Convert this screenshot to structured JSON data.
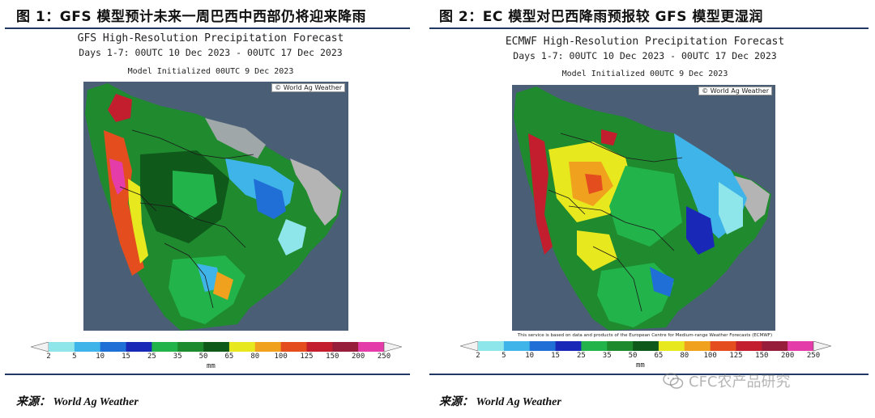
{
  "figure_left": {
    "title": "图 1：GFS 模型预计未来一周巴西中西部仍将迎来降雨",
    "panel_title": "GFS High-Resolution Precipitation Forecast",
    "days": "Days 1-7: 00UTC 10 Dec 2023 - 00UTC 17 Dec 2023",
    "initialized": "Model Initialized 00UTC 9 Dec 2023",
    "credit": "World Ag Weather",
    "source": "来源： World Ag Weather"
  },
  "figure_right": {
    "title": "图 2：EC 模型对巴西降雨预报较 GFS 模型更湿润",
    "panel_title": "ECMWF High-Resolution Precipitation Forecast",
    "days": "Days 1-7: 00UTC 10 Dec 2023 - 00UTC 17 Dec 2023",
    "initialized": "Model Initialized 00UTC 9 Dec 2023",
    "credit": "World Ag Weather",
    "note": "This service is based on data and products of the European Centre for Medium-range Weather Forecasts (ECMWF)",
    "source": "来源： World Ag Weather"
  },
  "colorbar": {
    "ticks": [
      "2",
      "5",
      "10",
      "15",
      "25",
      "35",
      "50",
      "65",
      "80",
      "100",
      "125",
      "150",
      "200",
      "250"
    ],
    "colors": [
      "#8fe6ea",
      "#3fb4e8",
      "#1f6fd6",
      "#1a28b8",
      "#22b34a",
      "#1e8a2e",
      "#0f5a1a",
      "#e8e81e",
      "#f0a21e",
      "#e44e1e",
      "#c21e2e",
      "#961e3a",
      "#e43ca8",
      "#a068d0",
      "#c8a0e4"
    ],
    "unit": "mm"
  },
  "watermark": "CFC农产品研究",
  "colors": {
    "ocean": "#4a5f76",
    "land_dry": "#b4b4b4",
    "rule": "#1f3864"
  }
}
